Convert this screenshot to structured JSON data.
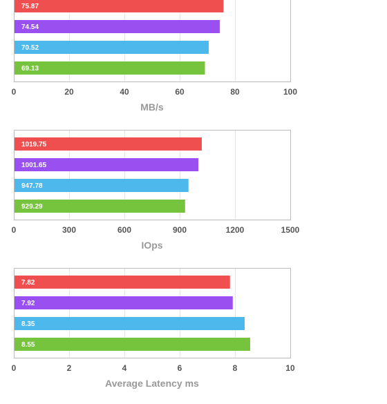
{
  "colors": {
    "series_1": "#ef4f4f",
    "series_2": "#9a4ff0",
    "series_3": "#4db8ec",
    "series_4": "#76c43d",
    "grid": "#e6e6e6",
    "frame": "#bcbcbc"
  },
  "chart_data": [
    {
      "type": "bar",
      "orientation": "horizontal",
      "title": "",
      "xlabel": "MB/s",
      "ylabel": "",
      "xlim": [
        0,
        100
      ],
      "xticks": [
        0,
        20,
        40,
        60,
        80,
        100
      ],
      "grid": true,
      "legend": "none",
      "bars": [
        {
          "value": 75.87,
          "label": "75.87",
          "color": "#ef4f4f"
        },
        {
          "value": 74.54,
          "label": "74.54",
          "color": "#9a4ff0"
        },
        {
          "value": 70.52,
          "label": "70.52",
          "color": "#4db8ec"
        },
        {
          "value": 69.13,
          "label": "69.13",
          "color": "#76c43d"
        }
      ]
    },
    {
      "type": "bar",
      "orientation": "horizontal",
      "title": "",
      "xlabel": "IOps",
      "ylabel": "",
      "xlim": [
        0,
        1500
      ],
      "xticks": [
        0,
        300,
        600,
        900,
        1200,
        1500
      ],
      "grid": true,
      "legend": "none",
      "bars": [
        {
          "value": 1019.75,
          "label": "1019.75",
          "color": "#ef4f4f"
        },
        {
          "value": 1001.65,
          "label": "1001.65",
          "color": "#9a4ff0"
        },
        {
          "value": 947.78,
          "label": "947.78",
          "color": "#4db8ec"
        },
        {
          "value": 929.29,
          "label": "929.29",
          "color": "#76c43d"
        }
      ]
    },
    {
      "type": "bar",
      "orientation": "horizontal",
      "title": "",
      "xlabel": "Average Latency ms",
      "ylabel": "",
      "xlim": [
        0,
        10
      ],
      "xticks": [
        0,
        2,
        4,
        6,
        8,
        10
      ],
      "grid": true,
      "legend": "none",
      "bars": [
        {
          "value": 7.82,
          "label": "7.82",
          "color": "#ef4f4f"
        },
        {
          "value": 7.92,
          "label": "7.92",
          "color": "#9a4ff0"
        },
        {
          "value": 8.35,
          "label": "8.35",
          "color": "#4db8ec"
        },
        {
          "value": 8.55,
          "label": "8.55",
          "color": "#76c43d"
        }
      ]
    }
  ]
}
